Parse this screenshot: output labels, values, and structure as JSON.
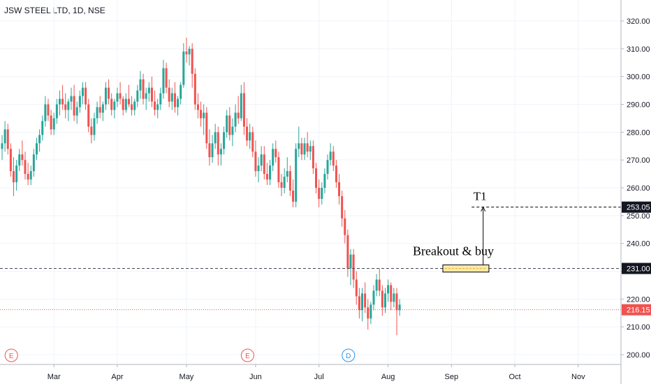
{
  "header": {
    "title": "JSW STEEL LTD, 1D, NSE"
  },
  "colors": {
    "up": "#26a69a",
    "down": "#ef5350",
    "grid": "#f0f3fa",
    "axis": "#b2b5be",
    "price_line": "#ef5350",
    "level_line": "#434651",
    "zone_fill": "#fbe7a7",
    "zone_border": "#000000",
    "badge_earnings": "#ef5350",
    "badge_dividend": "#2196f3"
  },
  "chart_data": {
    "type": "candlestick",
    "ylim": [
      195,
      325
    ],
    "yticks": [
      200,
      210,
      220,
      230,
      240,
      250,
      260,
      270,
      280,
      290,
      300,
      310,
      320
    ],
    "ytick_labels": [
      "200.00",
      "210.00",
      "220.00",
      "230.00",
      "240.00",
      "250.00",
      "260.00",
      "270.00",
      "280.00",
      "290.00",
      "300.00",
      "310.00",
      "320.00"
    ],
    "x_tick_labels": [
      "Mar",
      "Apr",
      "May",
      "Jun",
      "Jul",
      "Aug",
      "Sep",
      "Oct",
      "Nov"
    ],
    "x_tick_index": [
      18,
      40,
      64,
      88,
      110,
      134,
      156,
      178,
      200
    ],
    "total_slots": 213,
    "current_price": 216.15,
    "current_price_label": "216.15",
    "level_label": "231.00",
    "level_value": 231.0,
    "target_label": "253.05",
    "target_value": 253.05,
    "event_badges": [
      {
        "index": 2,
        "letter": "E",
        "kind": "earnings"
      },
      {
        "index": 84,
        "letter": "E",
        "kind": "earnings"
      },
      {
        "index": 119,
        "letter": "D",
        "kind": "dividend"
      }
    ],
    "annotations": {
      "breakout_text": "Breakout & buy",
      "target_text": "T1",
      "zone_start_index": 153,
      "zone_end_index": 169,
      "zone_low": 229.7,
      "zone_high": 232.3,
      "arrow_index": 167
    },
    "candles": [
      {
        "o": 274,
        "h": 279,
        "l": 270,
        "c": 276
      },
      {
        "o": 276,
        "h": 284,
        "l": 273,
        "c": 281
      },
      {
        "o": 281,
        "h": 283,
        "l": 272,
        "c": 274
      },
      {
        "o": 274,
        "h": 276,
        "l": 264,
        "c": 266
      },
      {
        "o": 266,
        "h": 271,
        "l": 257,
        "c": 262
      },
      {
        "o": 262,
        "h": 270,
        "l": 259,
        "c": 268
      },
      {
        "o": 268,
        "h": 274,
        "l": 266,
        "c": 272
      },
      {
        "o": 272,
        "h": 277,
        "l": 268,
        "c": 270
      },
      {
        "o": 270,
        "h": 273,
        "l": 263,
        "c": 265
      },
      {
        "o": 265,
        "h": 269,
        "l": 261,
        "c": 263
      },
      {
        "o": 263,
        "h": 268,
        "l": 261,
        "c": 266
      },
      {
        "o": 266,
        "h": 274,
        "l": 264,
        "c": 272
      },
      {
        "o": 272,
        "h": 278,
        "l": 270,
        "c": 276
      },
      {
        "o": 276,
        "h": 281,
        "l": 273,
        "c": 279
      },
      {
        "o": 279,
        "h": 286,
        "l": 277,
        "c": 284
      },
      {
        "o": 284,
        "h": 293,
        "l": 282,
        "c": 290
      },
      {
        "o": 290,
        "h": 292,
        "l": 284,
        "c": 286
      },
      {
        "o": 286,
        "h": 288,
        "l": 279,
        "c": 281
      },
      {
        "o": 281,
        "h": 287,
        "l": 279,
        "c": 285
      },
      {
        "o": 285,
        "h": 292,
        "l": 283,
        "c": 290
      },
      {
        "o": 290,
        "h": 295,
        "l": 286,
        "c": 292
      },
      {
        "o": 292,
        "h": 297,
        "l": 288,
        "c": 290
      },
      {
        "o": 290,
        "h": 294,
        "l": 285,
        "c": 288
      },
      {
        "o": 288,
        "h": 292,
        "l": 284,
        "c": 291
      },
      {
        "o": 291,
        "h": 296,
        "l": 288,
        "c": 293
      },
      {
        "o": 293,
        "h": 297,
        "l": 284,
        "c": 286
      },
      {
        "o": 286,
        "h": 291,
        "l": 283,
        "c": 289
      },
      {
        "o": 289,
        "h": 295,
        "l": 287,
        "c": 293
      },
      {
        "o": 293,
        "h": 298,
        "l": 290,
        "c": 296
      },
      {
        "o": 296,
        "h": 298,
        "l": 288,
        "c": 290
      },
      {
        "o": 290,
        "h": 292,
        "l": 280,
        "c": 282
      },
      {
        "o": 282,
        "h": 285,
        "l": 276,
        "c": 279
      },
      {
        "o": 279,
        "h": 287,
        "l": 277,
        "c": 285
      },
      {
        "o": 285,
        "h": 291,
        "l": 283,
        "c": 289
      },
      {
        "o": 289,
        "h": 293,
        "l": 285,
        "c": 287
      },
      {
        "o": 287,
        "h": 291,
        "l": 284,
        "c": 290
      },
      {
        "o": 290,
        "h": 298,
        "l": 288,
        "c": 296
      },
      {
        "o": 296,
        "h": 299,
        "l": 290,
        "c": 292
      },
      {
        "o": 292,
        "h": 294,
        "l": 286,
        "c": 288
      },
      {
        "o": 288,
        "h": 292,
        "l": 285,
        "c": 291
      },
      {
        "o": 291,
        "h": 296,
        "l": 289,
        "c": 294
      },
      {
        "o": 294,
        "h": 298,
        "l": 290,
        "c": 292
      },
      {
        "o": 292,
        "h": 293,
        "l": 286,
        "c": 288
      },
      {
        "o": 288,
        "h": 294,
        "l": 287,
        "c": 292
      },
      {
        "o": 292,
        "h": 297,
        "l": 289,
        "c": 290
      },
      {
        "o": 290,
        "h": 293,
        "l": 286,
        "c": 288
      },
      {
        "o": 288,
        "h": 292,
        "l": 286,
        "c": 291
      },
      {
        "o": 291,
        "h": 297,
        "l": 289,
        "c": 295
      },
      {
        "o": 295,
        "h": 302,
        "l": 292,
        "c": 299
      },
      {
        "o": 299,
        "h": 301,
        "l": 290,
        "c": 292
      },
      {
        "o": 292,
        "h": 296,
        "l": 288,
        "c": 294
      },
      {
        "o": 294,
        "h": 298,
        "l": 291,
        "c": 296
      },
      {
        "o": 296,
        "h": 300,
        "l": 289,
        "c": 291
      },
      {
        "o": 291,
        "h": 295,
        "l": 286,
        "c": 288
      },
      {
        "o": 288,
        "h": 292,
        "l": 285,
        "c": 290
      },
      {
        "o": 290,
        "h": 296,
        "l": 288,
        "c": 294
      },
      {
        "o": 294,
        "h": 306,
        "l": 292,
        "c": 303
      },
      {
        "o": 303,
        "h": 305,
        "l": 294,
        "c": 296
      },
      {
        "o": 296,
        "h": 299,
        "l": 289,
        "c": 291
      },
      {
        "o": 291,
        "h": 296,
        "l": 288,
        "c": 294
      },
      {
        "o": 294,
        "h": 298,
        "l": 287,
        "c": 289
      },
      {
        "o": 289,
        "h": 293,
        "l": 286,
        "c": 292
      },
      {
        "o": 292,
        "h": 298,
        "l": 290,
        "c": 297
      },
      {
        "o": 297,
        "h": 312,
        "l": 296,
        "c": 309
      },
      {
        "o": 309,
        "h": 314,
        "l": 305,
        "c": 308
      },
      {
        "o": 308,
        "h": 311,
        "l": 304,
        "c": 310
      },
      {
        "o": 310,
        "h": 312,
        "l": 296,
        "c": 301
      },
      {
        "o": 301,
        "h": 303,
        "l": 288,
        "c": 290
      },
      {
        "o": 290,
        "h": 294,
        "l": 285,
        "c": 288
      },
      {
        "o": 288,
        "h": 291,
        "l": 282,
        "c": 285
      },
      {
        "o": 285,
        "h": 290,
        "l": 279,
        "c": 287
      },
      {
        "o": 287,
        "h": 289,
        "l": 274,
        "c": 276
      },
      {
        "o": 276,
        "h": 281,
        "l": 268,
        "c": 271
      },
      {
        "o": 271,
        "h": 279,
        "l": 269,
        "c": 276
      },
      {
        "o": 276,
        "h": 283,
        "l": 274,
        "c": 280
      },
      {
        "o": 280,
        "h": 282,
        "l": 268,
        "c": 272
      },
      {
        "o": 272,
        "h": 276,
        "l": 268,
        "c": 274
      },
      {
        "o": 274,
        "h": 282,
        "l": 272,
        "c": 280
      },
      {
        "o": 280,
        "h": 288,
        "l": 278,
        "c": 286
      },
      {
        "o": 286,
        "h": 289,
        "l": 277,
        "c": 279
      },
      {
        "o": 279,
        "h": 285,
        "l": 275,
        "c": 282
      },
      {
        "o": 282,
        "h": 290,
        "l": 280,
        "c": 287
      },
      {
        "o": 287,
        "h": 293,
        "l": 283,
        "c": 285
      },
      {
        "o": 285,
        "h": 297,
        "l": 284,
        "c": 294
      },
      {
        "o": 294,
        "h": 298,
        "l": 279,
        "c": 282
      },
      {
        "o": 282,
        "h": 285,
        "l": 275,
        "c": 277
      },
      {
        "o": 277,
        "h": 283,
        "l": 274,
        "c": 280
      },
      {
        "o": 280,
        "h": 282,
        "l": 271,
        "c": 273
      },
      {
        "o": 273,
        "h": 277,
        "l": 264,
        "c": 266
      },
      {
        "o": 266,
        "h": 271,
        "l": 262,
        "c": 268
      },
      {
        "o": 268,
        "h": 275,
        "l": 266,
        "c": 272
      },
      {
        "o": 272,
        "h": 275,
        "l": 263,
        "c": 265
      },
      {
        "o": 265,
        "h": 269,
        "l": 261,
        "c": 263
      },
      {
        "o": 263,
        "h": 270,
        "l": 261,
        "c": 268
      },
      {
        "o": 268,
        "h": 276,
        "l": 266,
        "c": 274
      },
      {
        "o": 274,
        "h": 277,
        "l": 269,
        "c": 271
      },
      {
        "o": 271,
        "h": 273,
        "l": 260,
        "c": 262
      },
      {
        "o": 262,
        "h": 265,
        "l": 257,
        "c": 260
      },
      {
        "o": 260,
        "h": 267,
        "l": 258,
        "c": 264
      },
      {
        "o": 264,
        "h": 271,
        "l": 262,
        "c": 266
      },
      {
        "o": 266,
        "h": 268,
        "l": 257,
        "c": 259
      },
      {
        "o": 259,
        "h": 263,
        "l": 253,
        "c": 255
      },
      {
        "o": 255,
        "h": 276,
        "l": 253,
        "c": 274
      },
      {
        "o": 274,
        "h": 282,
        "l": 271,
        "c": 276
      },
      {
        "o": 276,
        "h": 278,
        "l": 270,
        "c": 272
      },
      {
        "o": 272,
        "h": 278,
        "l": 270,
        "c": 276
      },
      {
        "o": 276,
        "h": 280,
        "l": 271,
        "c": 273
      },
      {
        "o": 273,
        "h": 277,
        "l": 270,
        "c": 275
      },
      {
        "o": 275,
        "h": 277,
        "l": 265,
        "c": 267
      },
      {
        "o": 267,
        "h": 269,
        "l": 258,
        "c": 260
      },
      {
        "o": 260,
        "h": 263,
        "l": 253,
        "c": 256
      },
      {
        "o": 256,
        "h": 262,
        "l": 254,
        "c": 260
      },
      {
        "o": 260,
        "h": 267,
        "l": 258,
        "c": 265
      },
      {
        "o": 265,
        "h": 272,
        "l": 263,
        "c": 270
      },
      {
        "o": 270,
        "h": 276,
        "l": 268,
        "c": 273
      },
      {
        "o": 273,
        "h": 275,
        "l": 266,
        "c": 268
      },
      {
        "o": 268,
        "h": 270,
        "l": 260,
        "c": 262
      },
      {
        "o": 262,
        "h": 265,
        "l": 254,
        "c": 257
      },
      {
        "o": 257,
        "h": 259,
        "l": 246,
        "c": 249
      },
      {
        "o": 249,
        "h": 252,
        "l": 240,
        "c": 243
      },
      {
        "o": 243,
        "h": 245,
        "l": 228,
        "c": 231
      },
      {
        "o": 231,
        "h": 238,
        "l": 225,
        "c": 236
      },
      {
        "o": 236,
        "h": 238,
        "l": 224,
        "c": 227
      },
      {
        "o": 227,
        "h": 230,
        "l": 218,
        "c": 221
      },
      {
        "o": 221,
        "h": 224,
        "l": 213,
        "c": 216
      },
      {
        "o": 216,
        "h": 224,
        "l": 212,
        "c": 222
      },
      {
        "o": 222,
        "h": 226,
        "l": 215,
        "c": 217
      },
      {
        "o": 217,
        "h": 220,
        "l": 209,
        "c": 213
      },
      {
        "o": 213,
        "h": 219,
        "l": 211,
        "c": 218
      },
      {
        "o": 218,
        "h": 225,
        "l": 216,
        "c": 223
      },
      {
        "o": 223,
        "h": 229,
        "l": 221,
        "c": 227
      },
      {
        "o": 227,
        "h": 231,
        "l": 221,
        "c": 223
      },
      {
        "o": 223,
        "h": 225,
        "l": 214,
        "c": 217
      },
      {
        "o": 217,
        "h": 224,
        "l": 215,
        "c": 222
      },
      {
        "o": 222,
        "h": 227,
        "l": 219,
        "c": 225
      },
      {
        "o": 225,
        "h": 226,
        "l": 216,
        "c": 219
      },
      {
        "o": 219,
        "h": 224,
        "l": 217,
        "c": 222
      },
      {
        "o": 222,
        "h": 224,
        "l": 207,
        "c": 216
      },
      {
        "o": 216,
        "h": 220,
        "l": 214,
        "c": 218
      }
    ]
  }
}
